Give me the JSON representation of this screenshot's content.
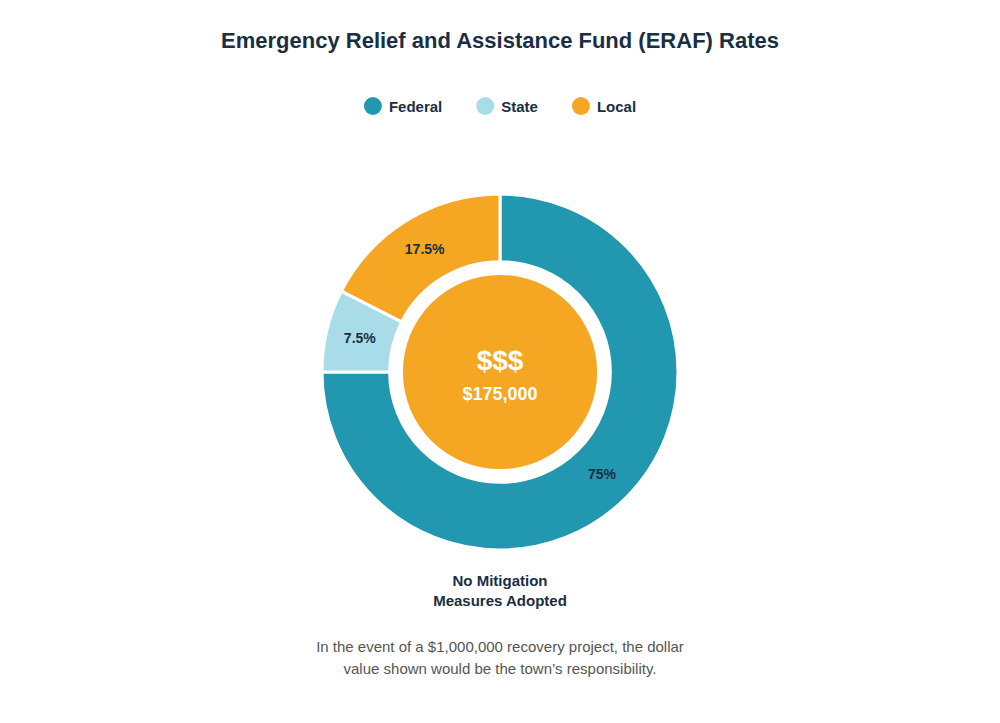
{
  "chart_data": {
    "type": "donut",
    "title": "Emergency Relief and Assistance Fund (ERAF) Rates",
    "categories": [
      "Federal",
      "State",
      "Local"
    ],
    "values": [
      75.0,
      7.5,
      17.5
    ],
    "value_labels": [
      "75%",
      "7.5%",
      "17.5%"
    ],
    "colors": [
      "#2298b0",
      "#a8dce8",
      "#f5a623"
    ],
    "data_labels": true,
    "center_text": [
      "$$$",
      "$175,000"
    ],
    "center_color": "#f5a623",
    "subtitle": "No Mitigation\nMeasures Adopted",
    "annotation": "In the event of a $1,000,000 recovery project, the dollar\nvalue shown would be the town’s responsibility."
  }
}
